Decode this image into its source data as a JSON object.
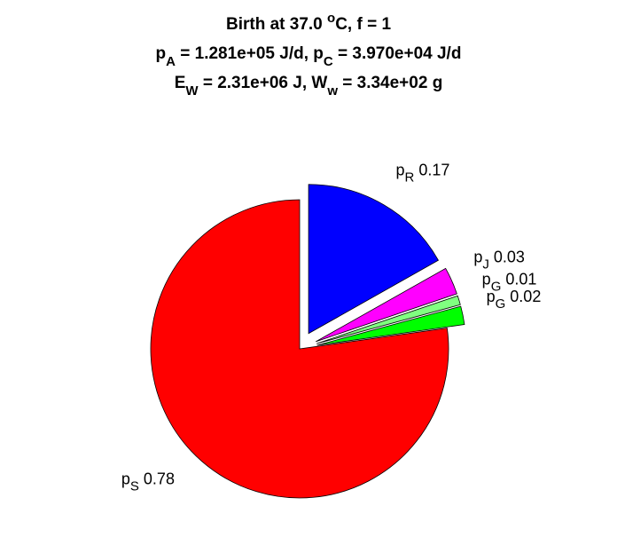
{
  "chart_data": {
    "type": "pie",
    "title": [
      [
        {
          "text": "Birth at 37.0 "
        },
        {
          "sup": "o"
        },
        {
          "text": "C, f = 1"
        }
      ],
      [
        {
          "text": "p"
        },
        {
          "sub": "A"
        },
        {
          "text": " = 1.281e+05 J/d, p"
        },
        {
          "sub": "C"
        },
        {
          "text": " = 3.970e+04 J/d"
        }
      ],
      [
        {
          "text": "E"
        },
        {
          "sub": "W"
        },
        {
          "text": " = 2.31e+06 J, W"
        },
        {
          "sub": "w"
        },
        {
          "text": " = 3.34e+02 g"
        }
      ]
    ],
    "labels": [
      {
        "base": "p",
        "sub": "R"
      },
      {
        "base": "p",
        "sub": "J"
      },
      {
        "base": "p",
        "sub": "G"
      },
      {
        "base": "p",
        "sub": "G"
      },
      {
        "base": "p",
        "sub": "S"
      }
    ],
    "values": [
      0.17,
      0.03,
      0.01,
      0.02,
      0.78
    ],
    "colors": [
      "#0000ff",
      "#ff00ff",
      "#80ff80",
      "#00ff00",
      "#ff0000"
    ],
    "explode": [
      1,
      1,
      1,
      1,
      0
    ]
  }
}
